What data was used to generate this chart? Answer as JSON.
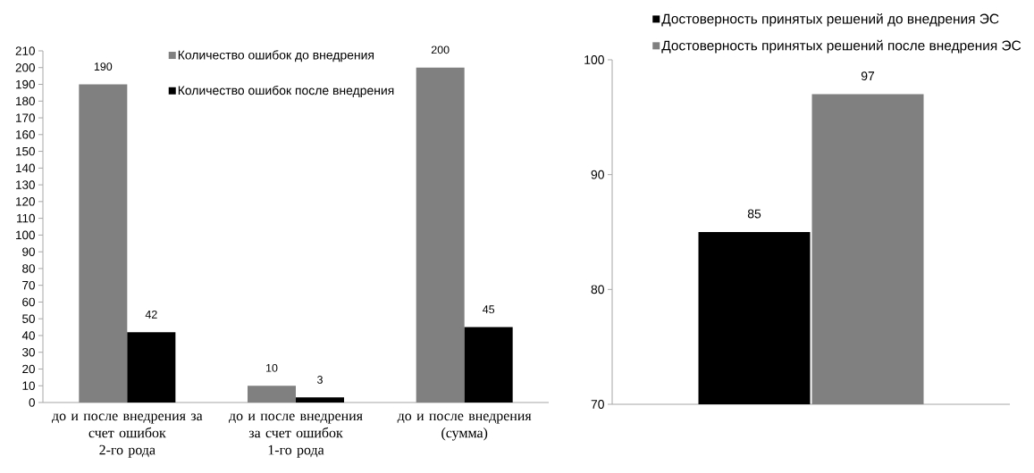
{
  "chart_data": [
    {
      "type": "bar",
      "categories": [
        "до и после внедрения за\nсчет ошибок\n2-го рода",
        "до и после внедрения\nза счет ошибок\n1-го рода",
        "до и после внедрения\n(сумма)"
      ],
      "series": [
        {
          "name": "Количество ошибок до внедрения",
          "color": "#808080",
          "values": [
            190,
            10,
            200
          ]
        },
        {
          "name": "Количество ошибок после внедрения",
          "color": "#000000",
          "values": [
            42,
            3,
            45
          ]
        }
      ],
      "ylim": [
        0,
        210
      ],
      "yticks": [
        0,
        10,
        20,
        30,
        40,
        50,
        60,
        70,
        80,
        90,
        100,
        110,
        120,
        130,
        140,
        150,
        160,
        170,
        180,
        190,
        200,
        210
      ],
      "data_labels": true,
      "legend": "top"
    },
    {
      "type": "bar",
      "categories": [
        null
      ],
      "series": [
        {
          "name": "Достоверность принятых решений до внедрения ЭС",
          "color": "#000000",
          "values": [
            85
          ]
        },
        {
          "name": "Достоверность принятых решений после внедрения ЭС",
          "color": "#808080",
          "values": [
            97
          ]
        }
      ],
      "ylim": [
        70,
        100
      ],
      "yticks": [
        70,
        80,
        90,
        100
      ],
      "data_labels": true,
      "legend": "top"
    }
  ]
}
